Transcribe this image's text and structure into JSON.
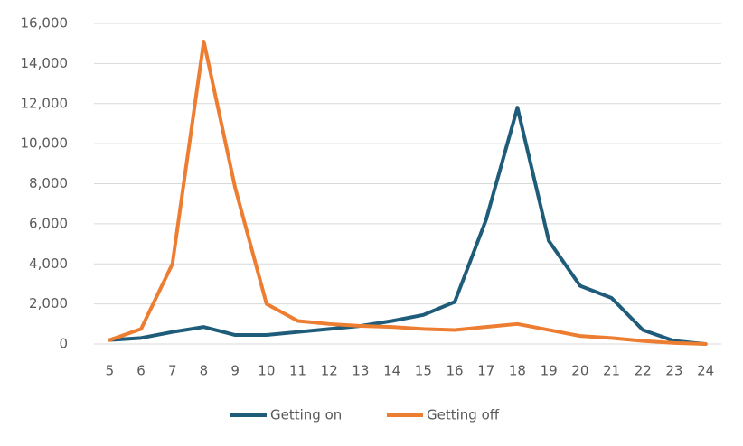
{
  "chart_data": {
    "type": "line",
    "categories": [
      "5",
      "6",
      "7",
      "8",
      "9",
      "10",
      "11",
      "12",
      "13",
      "14",
      "15",
      "16",
      "17",
      "18",
      "19",
      "20",
      "21",
      "22",
      "23",
      "24"
    ],
    "series": [
      {
        "name": "Getting on",
        "color": "#1f5c7a",
        "values": [
          200,
          300,
          600,
          850,
          450,
          450,
          600,
          750,
          900,
          1150,
          1450,
          2100,
          6200,
          11800,
          5150,
          2900,
          2300,
          700,
          150,
          0
        ]
      },
      {
        "name": "Getting off",
        "color": "#ed7d31",
        "values": [
          200,
          750,
          4000,
          15100,
          7800,
          2000,
          1150,
          1000,
          900,
          850,
          750,
          700,
          850,
          1000,
          700,
          400,
          300,
          150,
          50,
          0
        ]
      }
    ],
    "ylim": [
      0,
      16000
    ],
    "yticks": [
      0,
      {
        "value": 2000,
        "label": "2,000"
      },
      {
        "value": 4000,
        "label": "4,000"
      },
      {
        "value": 6000,
        "label": "6,000"
      },
      {
        "value": 8000,
        "label": "8,000"
      },
      {
        "value": 10000,
        "label": "10,000"
      },
      {
        "value": 12000,
        "label": "12,000"
      },
      {
        "value": 14000,
        "label": "14,000"
      },
      {
        "value": 16000,
        "label": "16,000"
      }
    ],
    "grid": true,
    "legend": "bottom"
  }
}
